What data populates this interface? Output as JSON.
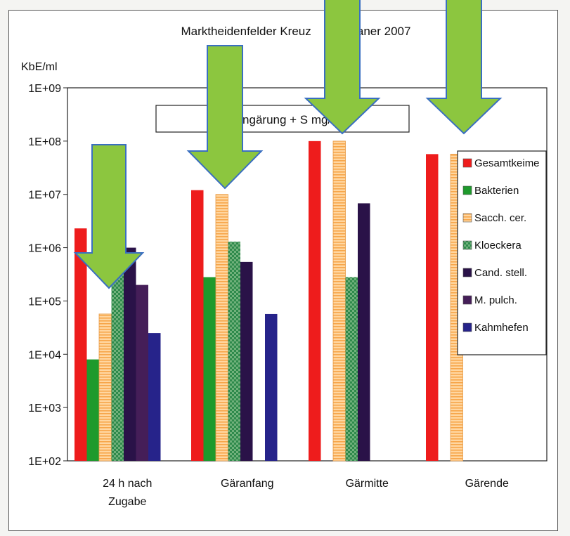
{
  "chart_data": {
    "type": "bar",
    "title": "Marktheidenfelder Kreuz        Silvaner 2007",
    "subtitle": "S       ngärung + S         mg/l",
    "ylabel": "KbE/ml",
    "xlabel": "",
    "y_scale": "log",
    "ylim": [
      100,
      1000000000
    ],
    "y_ticks": [
      "1E+02",
      "1E+03",
      "1E+04",
      "1E+05",
      "1E+06",
      "1E+07",
      "1E+08",
      "1E+09"
    ],
    "categories": [
      [
        "24 h nach",
        "Zugabe"
      ],
      [
        "Gäranfang"
      ],
      [
        "Gärmitte"
      ],
      [
        "Gärende"
      ]
    ],
    "series": [
      {
        "name": "Gesamtkeime",
        "color": "#ee1c1c",
        "pattern": "solid",
        "values": [
          2300000,
          12000000,
          100000000,
          57000000
        ]
      },
      {
        "name": "Bakterien",
        "color": "#1e9a2c",
        "pattern": "solid",
        "values": [
          8000,
          280000,
          null,
          null
        ]
      },
      {
        "name": "Sacch. cer.",
        "color": "#ffd6a0",
        "pattern": "hstripes",
        "values": [
          57000,
          10000000,
          100000000,
          57000000
        ]
      },
      {
        "name": "Kloeckera",
        "color": "#2f8a4c",
        "pattern": "checker",
        "values": [
          1000000,
          1300000,
          280000,
          null
        ]
      },
      {
        "name": "Cand. stell.",
        "color": "#2a1248",
        "pattern": "solid",
        "values": [
          1000000,
          540000,
          6800000,
          null
        ]
      },
      {
        "name": "M. pulch.",
        "color": "#451e58",
        "pattern": "solid",
        "values": [
          200000,
          null,
          null,
          null
        ]
      },
      {
        "name": "Kahmhefen",
        "color": "#26238a",
        "pattern": "solid",
        "values": [
          25000,
          57000,
          null,
          null
        ]
      }
    ],
    "grid": false,
    "legend_position": "right",
    "annotations": [
      {
        "type": "arrow",
        "color": "#8cc63f",
        "points_to": "24 h nach Zugabe"
      },
      {
        "type": "arrow",
        "color": "#8cc63f",
        "points_to": "Gäranfang"
      },
      {
        "type": "arrow",
        "color": "#8cc63f",
        "points_to": "Gärmitte"
      },
      {
        "type": "arrow",
        "color": "#8cc63f",
        "points_to": "Gärende"
      }
    ]
  }
}
